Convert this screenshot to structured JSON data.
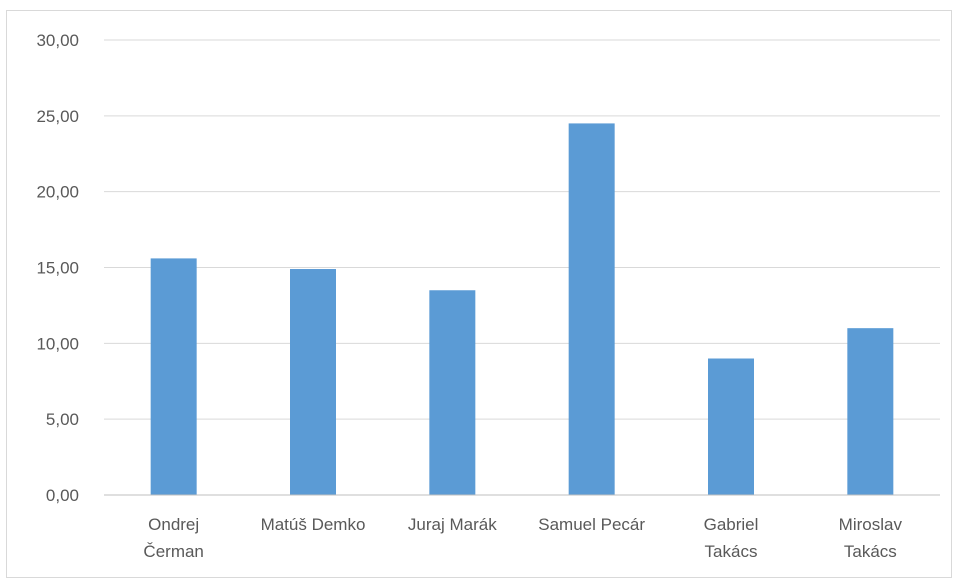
{
  "chart_data": {
    "type": "bar",
    "categories": [
      [
        "Ondrej",
        "Čerman"
      ],
      [
        "Matúš Demko"
      ],
      [
        "Juraj Marák"
      ],
      [
        "Samuel Pecár"
      ],
      [
        "Gabriel",
        "Takács"
      ],
      [
        "Miroslav",
        "Takács"
      ]
    ],
    "values": [
      15.6,
      14.9,
      13.5,
      24.5,
      9.0,
      11.0
    ],
    "ylim": [
      0,
      30
    ],
    "yticks": [
      "0,00",
      "5,00",
      "10,00",
      "15,00",
      "20,00",
      "25,00",
      "30,00"
    ],
    "title": "",
    "xlabel": "",
    "ylabel": "",
    "grid": true,
    "legend": "none",
    "colors": {
      "bar": "#5b9bd5",
      "grid": "#d9d9d9",
      "axis": "#bfbfbf",
      "text": "#595959"
    }
  }
}
